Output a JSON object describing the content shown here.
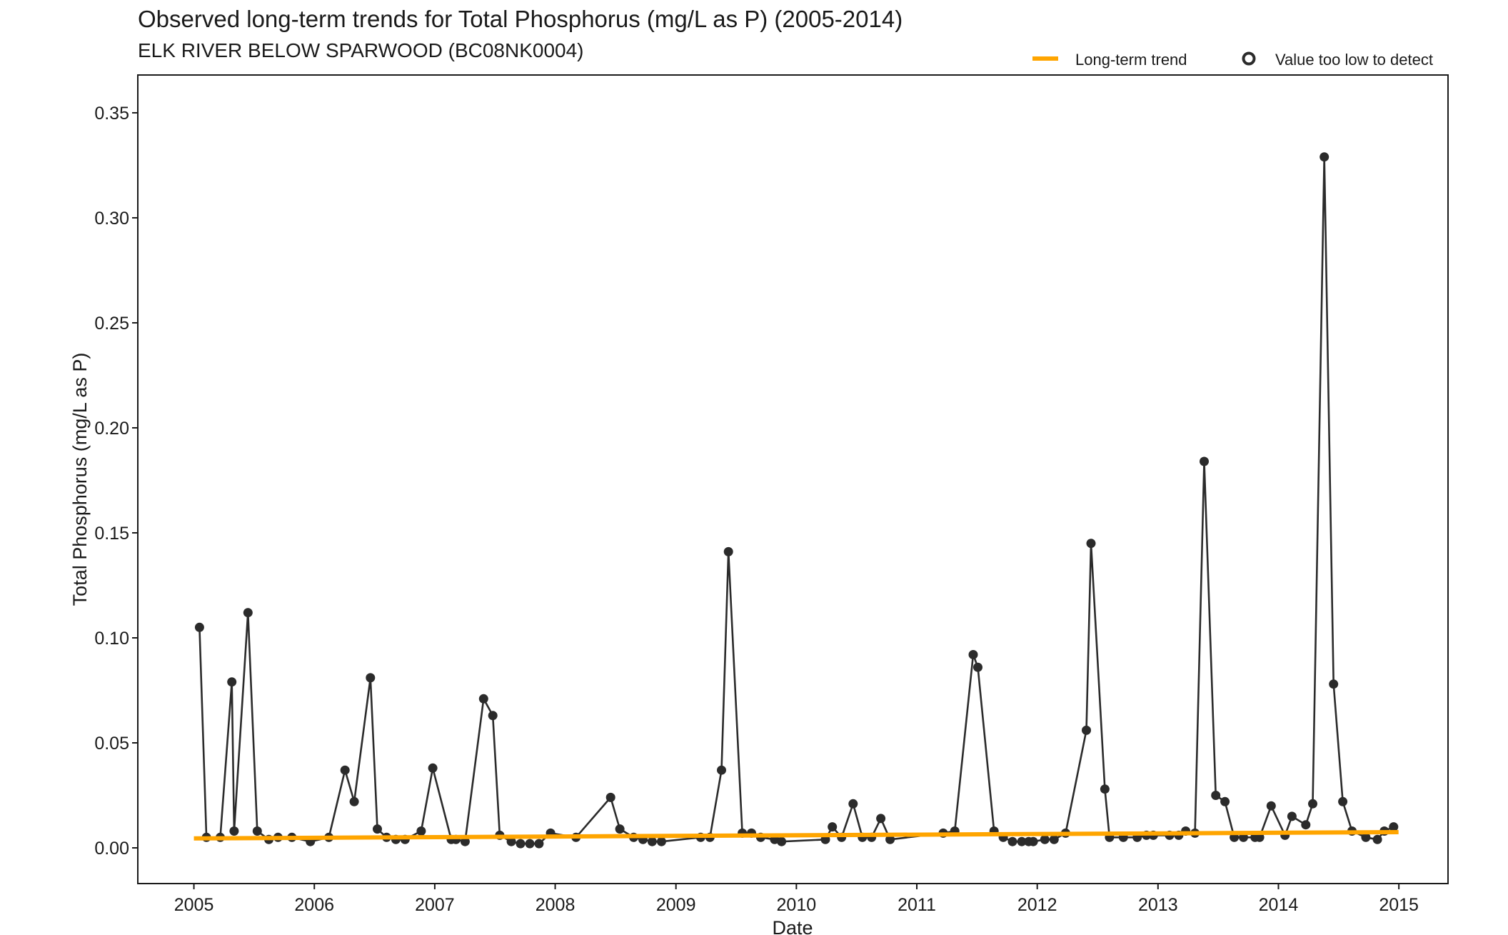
{
  "title": "Observed long-term trends for Total Phosphorus (mg/L as P) (2005-2014)",
  "subtitle": "ELK RIVER BELOW SPARWOOD (BC08NK0004)",
  "legend": {
    "trend_label": "Long-term trend",
    "censored_label": "Value too low to detect"
  },
  "colors": {
    "series": "#2b2b2b",
    "trend": "#FFA500"
  },
  "chart_data": {
    "type": "line",
    "xlabel": "Date",
    "ylabel": "Total Phosphorus (mg/L as P)",
    "xlim": [
      "2004-07-15",
      "2015-05-30"
    ],
    "ylim": [
      -0.017,
      0.368
    ],
    "x_ticks": [
      2005,
      2006,
      2007,
      2008,
      2009,
      2010,
      2011,
      2012,
      2013,
      2014,
      2015
    ],
    "y_ticks": [
      "0.00",
      "0.05",
      "0.10",
      "0.15",
      "0.20",
      "0.25",
      "0.30",
      "0.35"
    ],
    "grid": false,
    "legend_position": "top-right",
    "series": [
      {
        "name": "Total Phosphorus",
        "points": [
          [
            "2005-01-18",
            0.105
          ],
          [
            "2005-02-08",
            0.005
          ],
          [
            "2005-03-22",
            0.005
          ],
          [
            "2005-04-26",
            0.079
          ],
          [
            "2005-05-03",
            0.008
          ],
          [
            "2005-06-14",
            0.112
          ],
          [
            "2005-07-12",
            0.008
          ],
          [
            "2005-08-16",
            0.004
          ],
          [
            "2005-09-13",
            0.005
          ],
          [
            "2005-10-25",
            0.005
          ],
          [
            "2005-12-20",
            0.003
          ],
          [
            "2006-02-14",
            0.005
          ],
          [
            "2006-04-04",
            0.037
          ],
          [
            "2006-05-02",
            0.022
          ],
          [
            "2006-06-20",
            0.081
          ],
          [
            "2006-07-11",
            0.009
          ],
          [
            "2006-08-08",
            0.005
          ],
          [
            "2006-09-05",
            0.004
          ],
          [
            "2006-10-03",
            0.004
          ],
          [
            "2006-11-21",
            0.008
          ],
          [
            "2006-12-26",
            0.038
          ],
          [
            "2007-02-20",
            0.004
          ],
          [
            "2007-03-06",
            0.004
          ],
          [
            "2007-04-03",
            0.003
          ],
          [
            "2007-05-29",
            0.071
          ],
          [
            "2007-06-26",
            0.063
          ],
          [
            "2007-07-17",
            0.006
          ],
          [
            "2007-08-21",
            0.003
          ],
          [
            "2007-09-18",
            0.002
          ],
          [
            "2007-10-16",
            0.002
          ],
          [
            "2007-11-13",
            0.002
          ],
          [
            "2007-12-18",
            0.007
          ],
          [
            "2008-03-04",
            0.005
          ],
          [
            "2008-06-17",
            0.024
          ],
          [
            "2008-07-15",
            0.009
          ],
          [
            "2008-08-26",
            0.005
          ],
          [
            "2008-09-23",
            0.004
          ],
          [
            "2008-10-21",
            0.003
          ],
          [
            "2008-11-18",
            0.003
          ],
          [
            "2009-03-17",
            0.005
          ],
          [
            "2009-04-14",
            0.005
          ],
          [
            "2009-05-19",
            0.037
          ],
          [
            "2009-06-09",
            0.141
          ],
          [
            "2009-07-21",
            0.007
          ],
          [
            "2009-08-18",
            0.007
          ],
          [
            "2009-09-15",
            0.005
          ],
          [
            "2009-10-27",
            0.004
          ],
          [
            "2009-11-17",
            0.003
          ],
          [
            "2010-03-30",
            0.004
          ],
          [
            "2010-04-20",
            0.01
          ],
          [
            "2010-05-18",
            0.005
          ],
          [
            "2010-06-22",
            0.021
          ],
          [
            "2010-07-20",
            0.005
          ],
          [
            "2010-08-17",
            0.005
          ],
          [
            "2010-09-14",
            0.014
          ],
          [
            "2010-10-12",
            0.004
          ],
          [
            "2011-03-22",
            0.007
          ],
          [
            "2011-04-26",
            0.008
          ],
          [
            "2011-06-21",
            0.092
          ],
          [
            "2011-07-05",
            0.086
          ],
          [
            "2011-08-23",
            0.008
          ],
          [
            "2011-09-20",
            0.005
          ],
          [
            "2011-10-18",
            0.003
          ],
          [
            "2011-11-15",
            0.003
          ],
          [
            "2011-12-06",
            0.003
          ],
          [
            "2011-12-20",
            0.003
          ],
          [
            "2012-01-24",
            0.004
          ],
          [
            "2012-02-21",
            0.004
          ],
          [
            "2012-03-27",
            0.007
          ],
          [
            "2012-05-29",
            0.056
          ],
          [
            "2012-06-12",
            0.145
          ],
          [
            "2012-07-24",
            0.028
          ],
          [
            "2012-08-07",
            0.005
          ],
          [
            "2012-09-18",
            0.005
          ],
          [
            "2012-10-30",
            0.005
          ],
          [
            "2012-11-27",
            0.006
          ],
          [
            "2012-12-18",
            0.006
          ],
          [
            "2013-02-05",
            0.006
          ],
          [
            "2013-03-05",
            0.006
          ],
          [
            "2013-03-26",
            0.008
          ],
          [
            "2013-04-23",
            0.007
          ],
          [
            "2013-05-21",
            0.184
          ],
          [
            "2013-06-25",
            0.025
          ],
          [
            "2013-07-23",
            0.022
          ],
          [
            "2013-08-20",
            0.005
          ],
          [
            "2013-09-17",
            0.005
          ],
          [
            "2013-10-22",
            0.005
          ],
          [
            "2013-11-05",
            0.005
          ],
          [
            "2013-12-10",
            0.02
          ],
          [
            "2014-01-21",
            0.006
          ],
          [
            "2014-02-11",
            0.015
          ],
          [
            "2014-03-25",
            0.011
          ],
          [
            "2014-04-15",
            0.021
          ],
          [
            "2014-05-20",
            0.329
          ],
          [
            "2014-06-17",
            0.078
          ],
          [
            "2014-07-15",
            0.022
          ],
          [
            "2014-08-12",
            0.008
          ],
          [
            "2014-09-23",
            0.005
          ],
          [
            "2014-10-28",
            0.004
          ],
          [
            "2014-11-18",
            0.008
          ],
          [
            "2014-12-16",
            0.01
          ]
        ]
      },
      {
        "name": "Long-term trend",
        "points": [
          [
            "2005-01-01",
            0.0045
          ],
          [
            "2014-12-31",
            0.0075
          ]
        ]
      }
    ]
  }
}
